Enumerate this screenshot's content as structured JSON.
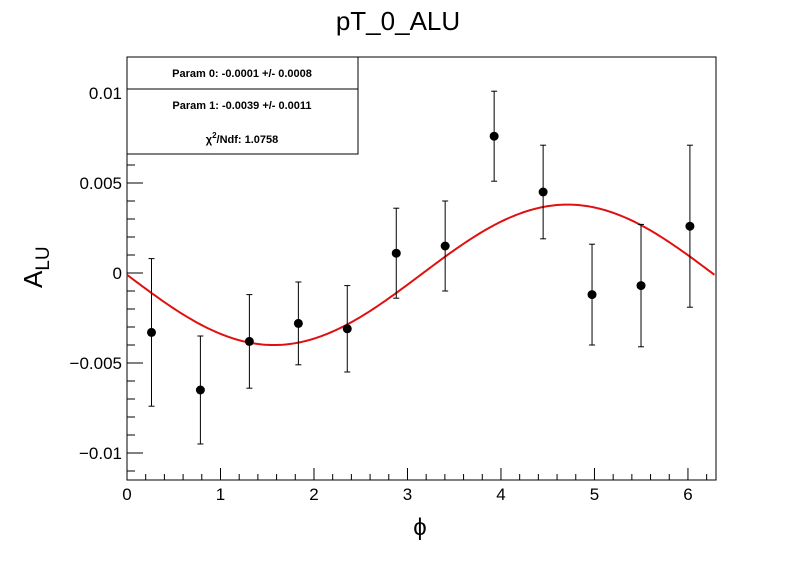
{
  "chart_data": {
    "type": "scatter",
    "title": "pT_0_ALU",
    "xlabel": "ϕ",
    "ylabel_main": "A",
    "ylabel_sub": "LU",
    "xlim": [
      0,
      6.3
    ],
    "ylim": [
      -0.0115,
      0.012
    ],
    "x_ticks": [
      0,
      1,
      2,
      3,
      4,
      5,
      6
    ],
    "x_tick_labels": [
      "0",
      "1",
      "2",
      "3",
      "4",
      "5",
      "6"
    ],
    "y_ticks": [
      -0.01,
      -0.005,
      0,
      0.005,
      0.01
    ],
    "y_tick_labels": [
      "−0.01",
      "−0.005",
      "0",
      "0.005",
      "0.01"
    ],
    "points": [
      {
        "x": 0.262,
        "y": -0.0033,
        "err": 0.0041
      },
      {
        "x": 0.785,
        "y": -0.0065,
        "err": 0.003
      },
      {
        "x": 1.309,
        "y": -0.0038,
        "err": 0.0026
      },
      {
        "x": 1.833,
        "y": -0.0028,
        "err": 0.0023
      },
      {
        "x": 2.356,
        "y": -0.0031,
        "err": 0.0024
      },
      {
        "x": 2.88,
        "y": 0.0011,
        "err": 0.0025
      },
      {
        "x": 3.403,
        "y": 0.0015,
        "err": 0.0025
      },
      {
        "x": 3.927,
        "y": 0.0076,
        "err": 0.0025
      },
      {
        "x": 4.451,
        "y": 0.0045,
        "err": 0.0026
      },
      {
        "x": 4.974,
        "y": -0.0012,
        "err": 0.0028
      },
      {
        "x": 5.498,
        "y": -0.0007,
        "err": 0.0034
      },
      {
        "x": 6.021,
        "y": 0.0026,
        "err": 0.0045
      }
    ],
    "fit": {
      "p0": -0.0001,
      "p1": -0.0039,
      "form": "p0 + p1*sin(x)",
      "x_range": [
        0,
        6.2832
      ]
    },
    "stats": {
      "param0": "Param 0: -0.0001 +/- 0.0008",
      "param1": "Param 1: -0.0039 +/- 0.0011",
      "chi2_prefix": "χ",
      "chi2_sup": "2",
      "chi2_suffix": "/Ndf: 1.0758"
    },
    "colors": {
      "fit": "#e01010",
      "points": "#000000",
      "frame": "#000000"
    }
  }
}
